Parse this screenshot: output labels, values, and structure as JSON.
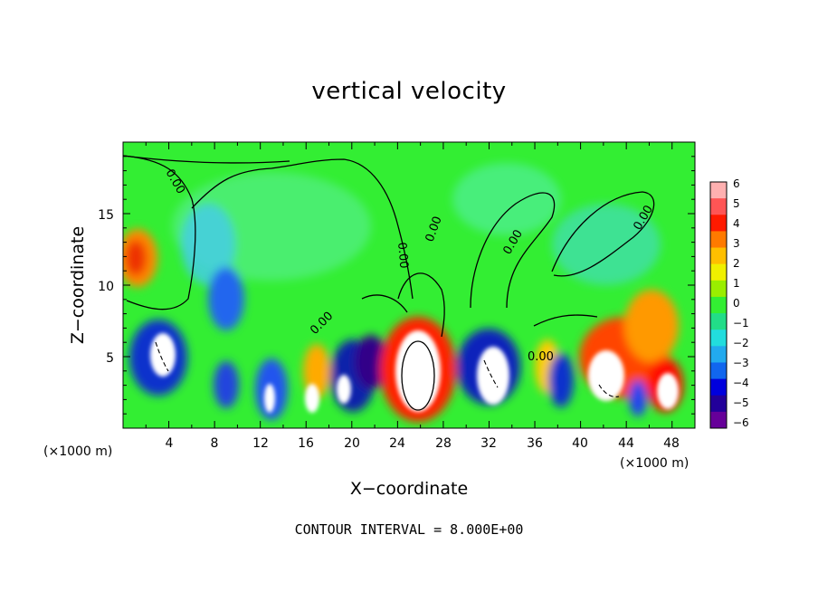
{
  "chart_data": {
    "type": "heatmap",
    "title": "vertical velocity",
    "xlabel": "X−coordinate",
    "ylabel": "Z−coordinate",
    "x_unit": "(×1000 m)",
    "xlim": [
      0,
      50
    ],
    "ylim": [
      0,
      20
    ],
    "x_ticks": [
      "4",
      "8",
      "12",
      "16",
      "20",
      "24",
      "28",
      "32",
      "36",
      "40",
      "44",
      "48"
    ],
    "y_ticks": [
      "5",
      "10",
      "15"
    ],
    "colorbar_ticks": [
      "6",
      "5",
      "4",
      "3",
      "2",
      "1",
      "0",
      "−1",
      "−2",
      "−3",
      "−4",
      "−5",
      "−6"
    ],
    "colorbar_range": [
      -6,
      6
    ],
    "contour_labels": [
      "0.00",
      "0.00",
      "0.00",
      "0.00",
      "0.00",
      "0.00",
      "0.00"
    ],
    "footer": "CONTOUR INTERVAL = 8.000E+00"
  }
}
